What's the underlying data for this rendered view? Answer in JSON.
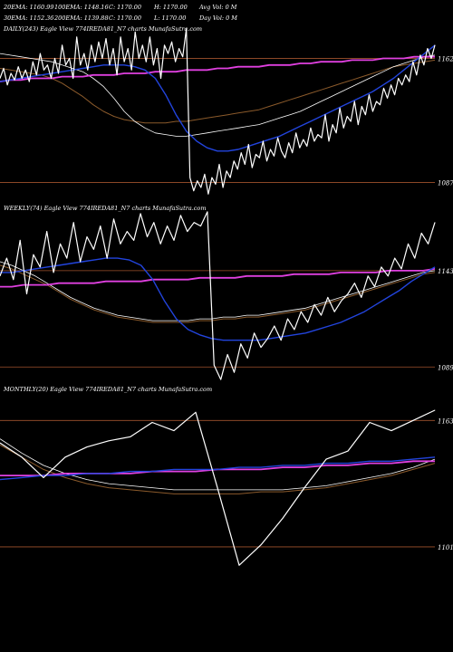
{
  "header": {
    "row1": [
      {
        "label": "20EMA:",
        "value": "1160.99"
      },
      {
        "label": "100EMA:",
        "value": "1148.16"
      },
      {
        "label": "C:",
        "value": "1170.00"
      },
      {
        "label": "H:",
        "value": "1170.00"
      },
      {
        "label": "Avg Vol:",
        "value": "0  M"
      }
    ],
    "row2": [
      {
        "label": "30EMA:",
        "value": "1152.36"
      },
      {
        "label": "200EMA:",
        "value": "1139.88"
      },
      {
        "label": "C:",
        "value": "1170.00"
      },
      {
        "label": "L:",
        "value": "1170.00"
      },
      {
        "label": "Day Vol:",
        "value": "0  M"
      }
    ]
  },
  "colors": {
    "background": "#000000",
    "price": "#ffffff",
    "ema_fast": "#2244dd",
    "ema_mid": "#e040e0",
    "ema_slow_light": "#ffffff",
    "ema_slow_brown": "#8b5a2b",
    "level_line": "#a0522d"
  },
  "chart_data": [
    {
      "type": "line",
      "title": "DAILY(243) Eagle  View  774IREDA81_N7 charts MunafaSutra.com",
      "ylim": [
        1078,
        1182
      ],
      "ylabels": [
        "1162",
        "1087"
      ],
      "levels": [
        1162,
        1087
      ],
      "series": [
        {
          "name": "",
          "kind": "price",
          "values": [
            1150,
            1156,
            1146,
            1153,
            1149,
            1157,
            1150,
            1155,
            1148,
            1160,
            1152,
            1165,
            1155,
            1158,
            1150,
            1162,
            1153,
            1170,
            1158,
            1162,
            1150,
            1175,
            1158,
            1165,
            1155,
            1170,
            1160,
            1172,
            1162,
            1174,
            1158,
            1168,
            1152,
            1175,
            1160,
            1168,
            1155,
            1178,
            1162,
            1170,
            1160,
            1175,
            1158,
            1168,
            1150,
            1170,
            1165,
            1172,
            1160,
            1168,
            1163,
            1180,
            1090,
            1082,
            1088,
            1084,
            1092,
            1080,
            1090,
            1086,
            1098,
            1084,
            1094,
            1090,
            1100,
            1095,
            1105,
            1098,
            1110,
            1096,
            1104,
            1102,
            1112,
            1100,
            1107,
            1103,
            1114,
            1106,
            1102,
            1111,
            1105,
            1117,
            1108,
            1113,
            1109,
            1120,
            1112,
            1116,
            1114,
            1128,
            1112,
            1122,
            1117,
            1132,
            1120,
            1127,
            1124,
            1136,
            1122,
            1133,
            1128,
            1140,
            1130,
            1136,
            1134,
            1144,
            1138,
            1146,
            1140,
            1150,
            1146,
            1152,
            1148,
            1160,
            1152,
            1164,
            1158,
            1168,
            1162,
            1170
          ]
        },
        {
          "name": "",
          "kind": "ema_fast",
          "values": [
            1148,
            1149,
            1150,
            1151,
            1152,
            1153,
            1154,
            1155,
            1156,
            1157,
            1158,
            1158,
            1158,
            1157,
            1155,
            1150,
            1140,
            1128,
            1118,
            1112,
            1108,
            1106,
            1106,
            1107,
            1109,
            1111,
            1113,
            1115,
            1118,
            1121,
            1124,
            1127,
            1130,
            1133,
            1136,
            1139,
            1142,
            1146,
            1150,
            1155,
            1160,
            1165,
            1170
          ]
        },
        {
          "name": "",
          "kind": "ema_mid",
          "values": [
            1148,
            1149,
            1149,
            1150,
            1150,
            1150,
            1151,
            1151,
            1151,
            1152,
            1152,
            1152,
            1153,
            1153,
            1153,
            1154,
            1154,
            1154,
            1155,
            1155,
            1155,
            1156,
            1156,
            1157,
            1157,
            1157,
            1158,
            1158,
            1158,
            1159,
            1159,
            1160,
            1160,
            1160,
            1161,
            1161,
            1161,
            1162,
            1162,
            1162,
            1163,
            1163,
            1163
          ]
        },
        {
          "name": "",
          "kind": "ema_slow_light",
          "values": [
            1165,
            1164,
            1163,
            1162,
            1161,
            1160,
            1158,
            1156,
            1154,
            1150,
            1145,
            1138,
            1130,
            1124,
            1120,
            1117,
            1116,
            1115,
            1115,
            1116,
            1117,
            1118,
            1119,
            1120,
            1121,
            1122,
            1124,
            1126,
            1128,
            1130,
            1133,
            1136,
            1139,
            1142,
            1145,
            1148,
            1151,
            1154,
            1157,
            1159,
            1161,
            1163,
            1164
          ]
        },
        {
          "name": "",
          "kind": "ema_slow_brown",
          "values": [
            1156,
            1155,
            1154,
            1153,
            1152,
            1150,
            1147,
            1143,
            1139,
            1134,
            1130,
            1127,
            1125,
            1124,
            1123,
            1123,
            1123,
            1124,
            1124,
            1125,
            1126,
            1127,
            1128,
            1129,
            1130,
            1131,
            1133,
            1135,
            1137,
            1139,
            1141,
            1143,
            1145,
            1147,
            1149,
            1151,
            1153,
            1155,
            1157,
            1158,
            1159,
            1160,
            1161
          ]
        }
      ]
    },
    {
      "type": "line",
      "title": "WEEKLY(74) Eagle  View  774IREDA81_N7 charts MunafaSutra.com",
      "ylim": [
        1080,
        1180
      ],
      "ylabels": [
        "1143",
        "1089"
      ],
      "levels": [
        1143,
        1089
      ],
      "series": [
        {
          "name": "",
          "kind": "price",
          "values": [
            1140,
            1150,
            1138,
            1160,
            1130,
            1152,
            1145,
            1165,
            1142,
            1158,
            1150,
            1170,
            1148,
            1162,
            1155,
            1168,
            1150,
            1172,
            1158,
            1165,
            1160,
            1175,
            1162,
            1170,
            1158,
            1168,
            1160,
            1174,
            1165,
            1170,
            1168,
            1176,
            1090,
            1082,
            1096,
            1086,
            1102,
            1094,
            1108,
            1100,
            1105,
            1112,
            1104,
            1116,
            1110,
            1120,
            1114,
            1124,
            1118,
            1128,
            1120,
            1126,
            1130,
            1136,
            1128,
            1140,
            1134,
            1145,
            1140,
            1150,
            1144,
            1158,
            1150,
            1164,
            1158,
            1170
          ]
        },
        {
          "name": "",
          "kind": "ema_fast",
          "values": [
            1142,
            1142,
            1143,
            1144,
            1145,
            1146,
            1147,
            1148,
            1149,
            1150,
            1150,
            1149,
            1146,
            1138,
            1126,
            1116,
            1110,
            1107,
            1105,
            1104,
            1104,
            1104,
            1104,
            1105,
            1106,
            1107,
            1108,
            1110,
            1112,
            1114,
            1117,
            1120,
            1124,
            1128,
            1132,
            1137,
            1141,
            1145
          ]
        },
        {
          "name": "",
          "kind": "ema_mid",
          "values": [
            1134,
            1134,
            1135,
            1135,
            1135,
            1136,
            1136,
            1136,
            1136,
            1137,
            1137,
            1137,
            1137,
            1138,
            1138,
            1138,
            1138,
            1139,
            1139,
            1139,
            1139,
            1140,
            1140,
            1140,
            1140,
            1141,
            1141,
            1141,
            1141,
            1142,
            1142,
            1142,
            1142,
            1143,
            1143,
            1143,
            1143,
            1144
          ]
        },
        {
          "name": "",
          "kind": "ema_slow_light",
          "values": [
            1148,
            1146,
            1143,
            1140,
            1136,
            1132,
            1128,
            1125,
            1122,
            1120,
            1118,
            1117,
            1116,
            1115,
            1115,
            1115,
            1115,
            1116,
            1116,
            1117,
            1117,
            1118,
            1118,
            1119,
            1120,
            1121,
            1122,
            1124,
            1126,
            1128,
            1130,
            1132,
            1134,
            1136,
            1138,
            1140,
            1142,
            1143
          ]
        },
        {
          "name": "",
          "kind": "ema_slow_brown",
          "values": [
            1146,
            1144,
            1141,
            1138,
            1135,
            1131,
            1127,
            1124,
            1121,
            1119,
            1117,
            1116,
            1115,
            1114,
            1114,
            1114,
            1114,
            1115,
            1115,
            1116,
            1116,
            1117,
            1117,
            1118,
            1119,
            1120,
            1121,
            1123,
            1125,
            1127,
            1129,
            1131,
            1133,
            1135,
            1137,
            1139,
            1141,
            1142
          ]
        }
      ]
    },
    {
      "type": "line",
      "title": "MONTHLY(20) Eagle  View  774IREDA81_N7 charts MunafaSutra.com",
      "ylim": [
        1085,
        1180
      ],
      "ylabels": [
        "1163",
        "1101"
      ],
      "levels": [
        1163,
        1101
      ],
      "series": [
        {
          "name": "",
          "kind": "price",
          "values": [
            1152,
            1145,
            1135,
            1145,
            1150,
            1153,
            1155,
            1162,
            1158,
            1167,
            1130,
            1092,
            1102,
            1115,
            1130,
            1144,
            1148,
            1162,
            1158,
            1163,
            1168
          ]
        },
        {
          "name": "",
          "kind": "ema_fast",
          "values": [
            1134,
            1135,
            1136,
            1136,
            1137,
            1137,
            1138,
            1138,
            1139,
            1139,
            1139,
            1140,
            1140,
            1141,
            1141,
            1142,
            1142,
            1143,
            1143,
            1144,
            1145
          ]
        },
        {
          "name": "",
          "kind": "ema_mid",
          "values": [
            1136,
            1136,
            1136,
            1137,
            1137,
            1137,
            1137,
            1138,
            1138,
            1138,
            1139,
            1139,
            1139,
            1140,
            1140,
            1141,
            1141,
            1142,
            1142,
            1143,
            1143
          ]
        },
        {
          "name": "",
          "kind": "ema_slow_light",
          "values": [
            1154,
            1147,
            1141,
            1137,
            1134,
            1132,
            1131,
            1130,
            1129,
            1129,
            1129,
            1129,
            1129,
            1129,
            1130,
            1131,
            1133,
            1135,
            1137,
            1140,
            1144
          ]
        },
        {
          "name": "",
          "kind": "ema_slow_brown",
          "values": [
            1151,
            1145,
            1139,
            1135,
            1132,
            1130,
            1129,
            1128,
            1127,
            1127,
            1127,
            1127,
            1128,
            1128,
            1129,
            1130,
            1132,
            1134,
            1136,
            1139,
            1142
          ]
        }
      ]
    }
  ]
}
